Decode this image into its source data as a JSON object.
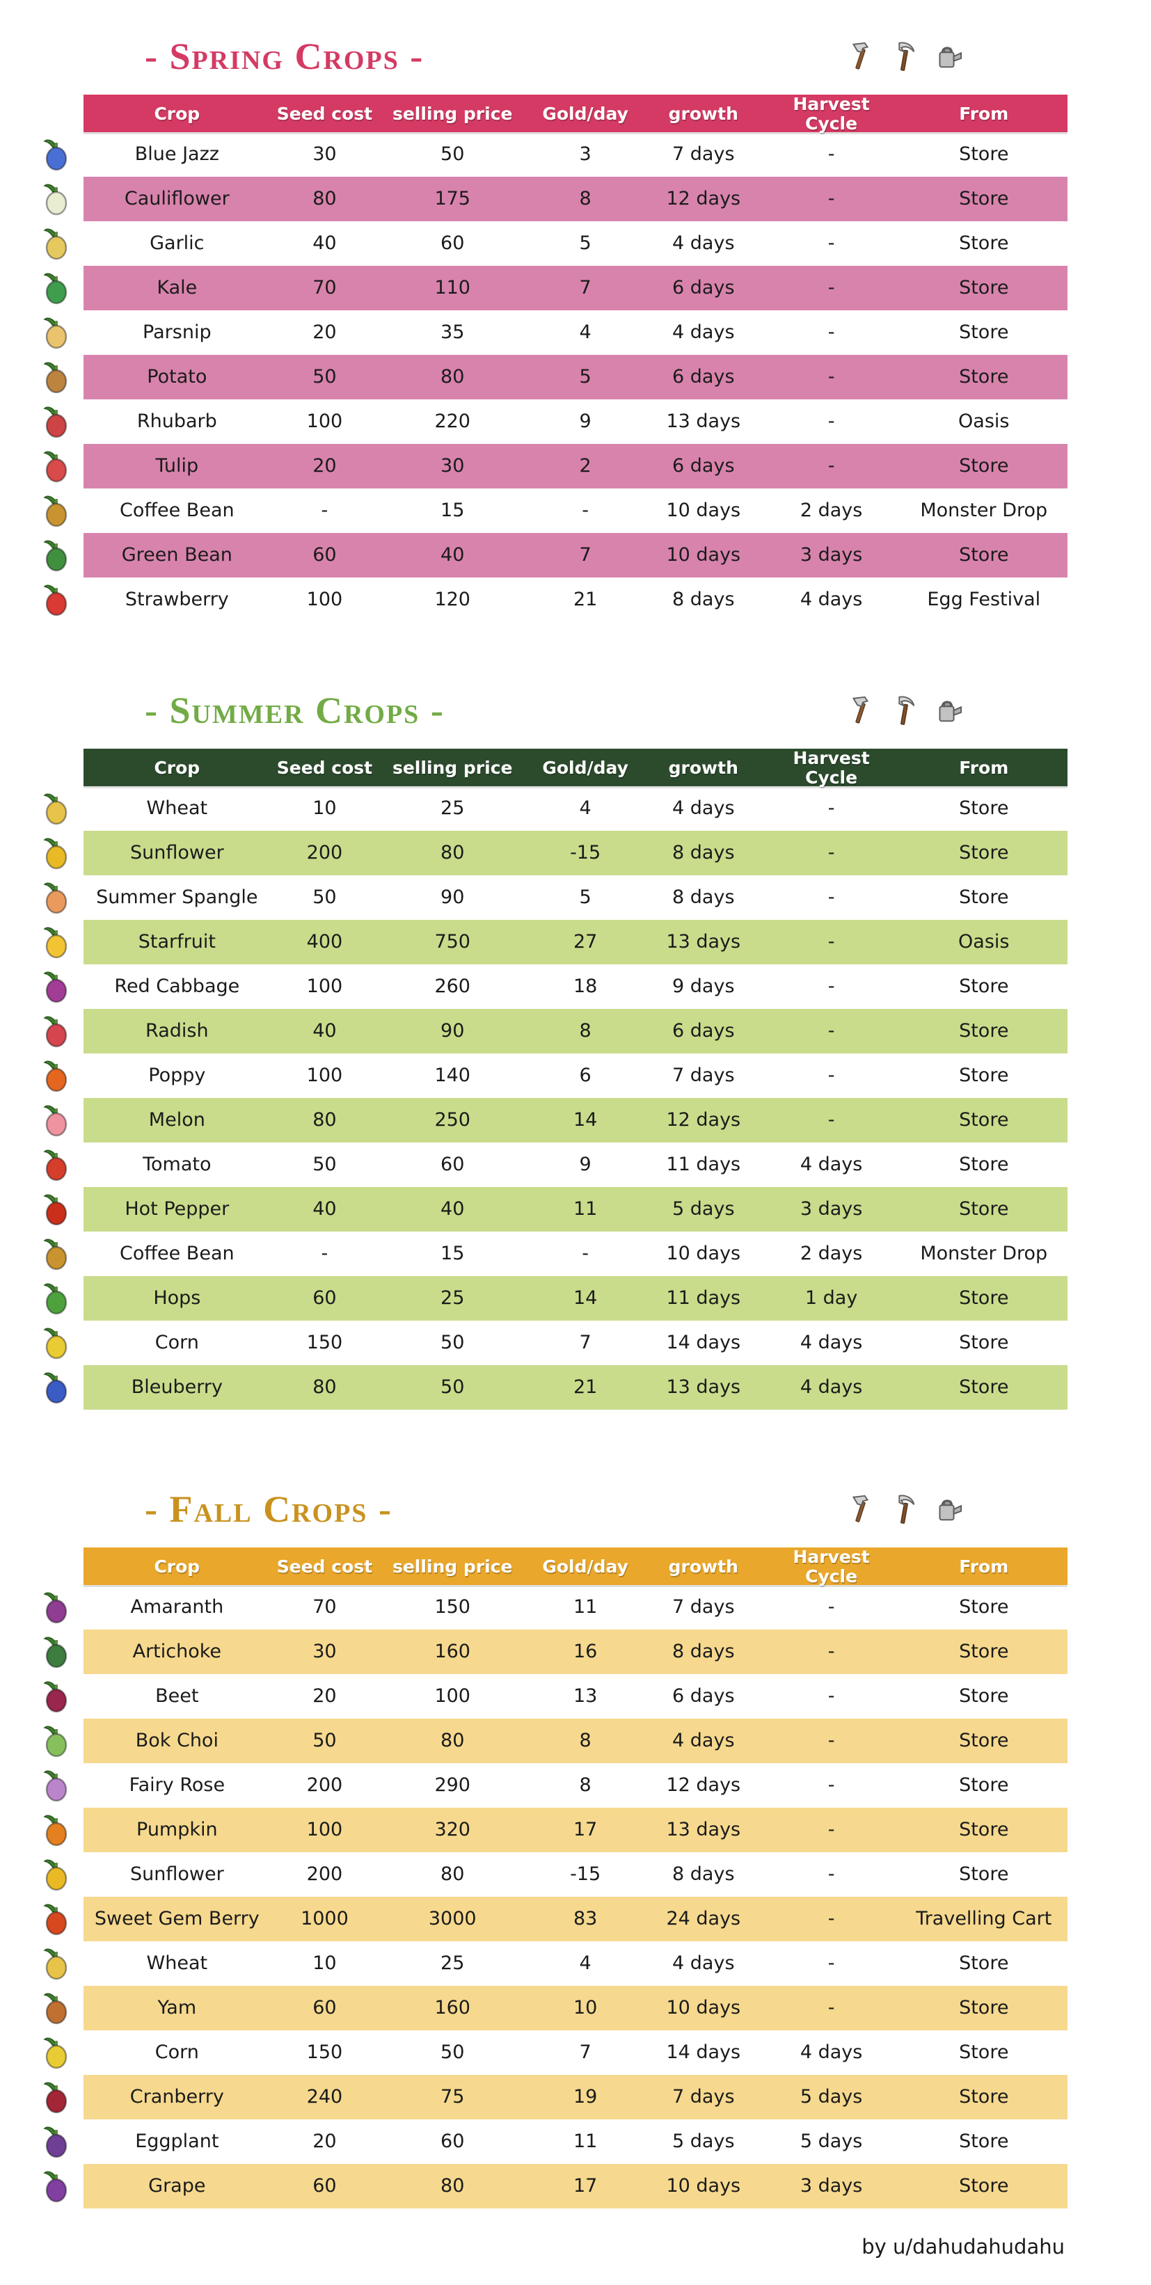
{
  "columns": [
    "Crop",
    "Seed cost",
    "selling price",
    "Gold/day",
    "growth",
    "Harvest Cycle",
    "From"
  ],
  "tool_icons": [
    "hoe-icon",
    "scythe-icon",
    "watering-can-icon"
  ],
  "footer": {
    "credit": "by u/dahudahudahu"
  },
  "sections": [
    {
      "title": "- Spring Crops -",
      "colors": {
        "title": "#d43a63",
        "header_bg": "#d43a63",
        "alt_row_bg": "#d883ac",
        "header_text": "#ffffff"
      },
      "rows": [
        {
          "icon": "blue-jazz-icon",
          "icon_color": "#4a6fd4",
          "crop": "Blue Jazz",
          "seed_cost": "30",
          "selling_price": "50",
          "gold_per_day": "3",
          "growth": "7 days",
          "harvest_cycle": "-",
          "from": "Store"
        },
        {
          "icon": "cauliflower-icon",
          "icon_color": "#e9edd2",
          "crop": "Cauliflower",
          "seed_cost": "80",
          "selling_price": "175",
          "gold_per_day": "8",
          "growth": "12 days",
          "harvest_cycle": "-",
          "from": "Store"
        },
        {
          "icon": "garlic-icon",
          "icon_color": "#e5c95f",
          "crop": "Garlic",
          "seed_cost": "40",
          "selling_price": "60",
          "gold_per_day": "5",
          "growth": "4 days",
          "harvest_cycle": "-",
          "from": "Store"
        },
        {
          "icon": "kale-icon",
          "icon_color": "#3f9e4d",
          "crop": "Kale",
          "seed_cost": "70",
          "selling_price": "110",
          "gold_per_day": "7",
          "growth": "6 days",
          "harvest_cycle": "-",
          "from": "Store"
        },
        {
          "icon": "parsnip-icon",
          "icon_color": "#eac36e",
          "crop": "Parsnip",
          "seed_cost": "20",
          "selling_price": "35",
          "gold_per_day": "4",
          "growth": "4 days",
          "harvest_cycle": "-",
          "from": "Store"
        },
        {
          "icon": "potato-icon",
          "icon_color": "#bd8440",
          "crop": "Potato",
          "seed_cost": "50",
          "selling_price": "80",
          "gold_per_day": "5",
          "growth": "6 days",
          "harvest_cycle": "-",
          "from": "Store"
        },
        {
          "icon": "rhubarb-icon",
          "icon_color": "#cc4444",
          "crop": "Rhubarb",
          "seed_cost": "100",
          "selling_price": "220",
          "gold_per_day": "9",
          "growth": "13 days",
          "harvest_cycle": "-",
          "from": "Oasis"
        },
        {
          "icon": "tulip-icon",
          "icon_color": "#d94a4a",
          "crop": "Tulip",
          "seed_cost": "20",
          "selling_price": "30",
          "gold_per_day": "2",
          "growth": "6 days",
          "harvest_cycle": "-",
          "from": "Store"
        },
        {
          "icon": "coffee-bean-icon",
          "icon_color": "#c9942f",
          "crop": "Coffee Bean",
          "seed_cost": "-",
          "selling_price": "15",
          "gold_per_day": "-",
          "growth": "10 days",
          "harvest_cycle": "2 days",
          "from": "Monster Drop"
        },
        {
          "icon": "green-bean-icon",
          "icon_color": "#3f8f3f",
          "crop": "Green Bean",
          "seed_cost": "60",
          "selling_price": "40",
          "gold_per_day": "7",
          "growth": "10 days",
          "harvest_cycle": "3 days",
          "from": "Store"
        },
        {
          "icon": "strawberry-icon",
          "icon_color": "#d93a33",
          "crop": "Strawberry",
          "seed_cost": "100",
          "selling_price": "120",
          "gold_per_day": "21",
          "growth": "8 days",
          "harvest_cycle": "4 days",
          "from": "Egg Festival"
        }
      ]
    },
    {
      "title": "- Summer Crops -",
      "colors": {
        "title": "#72ab45",
        "header_bg": "#2c4b2d",
        "alt_row_bg": "#c9dc8b",
        "header_text": "#ffffff"
      },
      "rows": [
        {
          "icon": "wheat-icon",
          "icon_color": "#e8c34a",
          "crop": "Wheat",
          "seed_cost": "10",
          "selling_price": "25",
          "gold_per_day": "4",
          "growth": "4 days",
          "harvest_cycle": "-",
          "from": "Store"
        },
        {
          "icon": "sunflower-icon",
          "icon_color": "#e9ba25",
          "crop": "Sunflower",
          "seed_cost": "200",
          "selling_price": "80",
          "gold_per_day": "-15",
          "growth": "8 days",
          "harvest_cycle": "-",
          "from": "Store"
        },
        {
          "icon": "summer-spangle-icon",
          "icon_color": "#e99a5c",
          "crop": "Summer Spangle",
          "seed_cost": "50",
          "selling_price": "90",
          "gold_per_day": "5",
          "growth": "8 days",
          "harvest_cycle": "-",
          "from": "Store"
        },
        {
          "icon": "starfruit-icon",
          "icon_color": "#f2c434",
          "crop": "Starfruit",
          "seed_cost": "400",
          "selling_price": "750",
          "gold_per_day": "27",
          "growth": "13 days",
          "harvest_cycle": "-",
          "from": "Oasis"
        },
        {
          "icon": "red-cabbage-icon",
          "icon_color": "#a23d95",
          "crop": "Red Cabbage",
          "seed_cost": "100",
          "selling_price": "260",
          "gold_per_day": "18",
          "growth": "9 days",
          "harvest_cycle": "-",
          "from": "Store"
        },
        {
          "icon": "radish-icon",
          "icon_color": "#d4454e",
          "crop": "Radish",
          "seed_cost": "40",
          "selling_price": "90",
          "gold_per_day": "8",
          "growth": "6 days",
          "harvest_cycle": "-",
          "from": "Store"
        },
        {
          "icon": "poppy-icon",
          "icon_color": "#e4661f",
          "crop": "Poppy",
          "seed_cost": "100",
          "selling_price": "140",
          "gold_per_day": "6",
          "growth": "7 days",
          "harvest_cycle": "-",
          "from": "Store"
        },
        {
          "icon": "melon-icon",
          "icon_color": "#ef93a0",
          "crop": "Melon",
          "seed_cost": "80",
          "selling_price": "250",
          "gold_per_day": "14",
          "growth": "12 days",
          "harvest_cycle": "-",
          "from": "Store"
        },
        {
          "icon": "tomato-icon",
          "icon_color": "#d43e2b",
          "crop": "Tomato",
          "seed_cost": "50",
          "selling_price": "60",
          "gold_per_day": "9",
          "growth": "11 days",
          "harvest_cycle": "4 days",
          "from": "Store"
        },
        {
          "icon": "hot-pepper-icon",
          "icon_color": "#c92f1b",
          "crop": "Hot Pepper",
          "seed_cost": "40",
          "selling_price": "40",
          "gold_per_day": "11",
          "growth": "5 days",
          "harvest_cycle": "3 days",
          "from": "Store"
        },
        {
          "icon": "coffee-bean-icon",
          "icon_color": "#c9942f",
          "crop": "Coffee Bean",
          "seed_cost": "-",
          "selling_price": "15",
          "gold_per_day": "-",
          "growth": "10 days",
          "harvest_cycle": "2 days",
          "from": "Monster Drop"
        },
        {
          "icon": "hops-icon",
          "icon_color": "#4da23e",
          "crop": "Hops",
          "seed_cost": "60",
          "selling_price": "25",
          "gold_per_day": "14",
          "growth": "11 days",
          "harvest_cycle": "1 day",
          "from": "Store"
        },
        {
          "icon": "corn-icon",
          "icon_color": "#e9cb33",
          "crop": "Corn",
          "seed_cost": "150",
          "selling_price": "50",
          "gold_per_day": "7",
          "growth": "14 days",
          "harvest_cycle": "4 days",
          "from": "Store"
        },
        {
          "icon": "bleuberry-icon",
          "icon_color": "#3b5cc4",
          "crop": "Bleuberry",
          "seed_cost": "80",
          "selling_price": "50",
          "gold_per_day": "21",
          "growth": "13 days",
          "harvest_cycle": "4 days",
          "from": "Store"
        }
      ]
    },
    {
      "title": "- Fall Crops -",
      "colors": {
        "title": "#c9921f",
        "header_bg": "#e9a72b",
        "alt_row_bg": "#f6d98e",
        "header_text": "#ffffff"
      },
      "rows": [
        {
          "icon": "amaranth-icon",
          "icon_color": "#8e3d92",
          "crop": "Amaranth",
          "seed_cost": "70",
          "selling_price": "150",
          "gold_per_day": "11",
          "growth": "7 days",
          "harvest_cycle": "-",
          "from": "Store"
        },
        {
          "icon": "artichoke-icon",
          "icon_color": "#3d7d3f",
          "crop": "Artichoke",
          "seed_cost": "30",
          "selling_price": "160",
          "gold_per_day": "16",
          "growth": "8 days",
          "harvest_cycle": "-",
          "from": "Store"
        },
        {
          "icon": "beet-icon",
          "icon_color": "#99264d",
          "crop": "Beet",
          "seed_cost": "20",
          "selling_price": "100",
          "gold_per_day": "13",
          "growth": "6 days",
          "harvest_cycle": "-",
          "from": "Store"
        },
        {
          "icon": "bok-choi-icon",
          "icon_color": "#86c05c",
          "crop": "Bok Choi",
          "seed_cost": "50",
          "selling_price": "80",
          "gold_per_day": "8",
          "growth": "4 days",
          "harvest_cycle": "-",
          "from": "Store"
        },
        {
          "icon": "fairy-rose-icon",
          "icon_color": "#bb85cc",
          "crop": "Fairy Rose",
          "seed_cost": "200",
          "selling_price": "290",
          "gold_per_day": "8",
          "growth": "12 days",
          "harvest_cycle": "-",
          "from": "Store"
        },
        {
          "icon": "pumpkin-icon",
          "icon_color": "#e4801f",
          "crop": "Pumpkin",
          "seed_cost": "100",
          "selling_price": "320",
          "gold_per_day": "17",
          "growth": "13 days",
          "harvest_cycle": "-",
          "from": "Store"
        },
        {
          "icon": "sunflower-icon",
          "icon_color": "#e9ba25",
          "crop": "Sunflower",
          "seed_cost": "200",
          "selling_price": "80",
          "gold_per_day": "-15",
          "growth": "8 days",
          "harvest_cycle": "-",
          "from": "Store"
        },
        {
          "icon": "sweet-gem-berry-icon",
          "icon_color": "#d8481f",
          "crop": "Sweet Gem Berry",
          "seed_cost": "1000",
          "selling_price": "3000",
          "gold_per_day": "83",
          "growth": "24 days",
          "harvest_cycle": "-",
          "from": "Travelling Cart"
        },
        {
          "icon": "wheat-icon",
          "icon_color": "#e8c34a",
          "crop": "Wheat",
          "seed_cost": "10",
          "selling_price": "25",
          "gold_per_day": "4",
          "growth": "4 days",
          "harvest_cycle": "-",
          "from": "Store"
        },
        {
          "icon": "yam-icon",
          "icon_color": "#c07030",
          "crop": "Yam",
          "seed_cost": "60",
          "selling_price": "160",
          "gold_per_day": "10",
          "growth": "10 days",
          "harvest_cycle": "-",
          "from": "Store"
        },
        {
          "icon": "corn-icon",
          "icon_color": "#e9cb33",
          "crop": "Corn",
          "seed_cost": "150",
          "selling_price": "50",
          "gold_per_day": "7",
          "growth": "14 days",
          "harvest_cycle": "4 days",
          "from": "Store"
        },
        {
          "icon": "cranberry-icon",
          "icon_color": "#a22636",
          "crop": "Cranberry",
          "seed_cost": "240",
          "selling_price": "75",
          "gold_per_day": "19",
          "growth": "7 days",
          "harvest_cycle": "5 days",
          "from": "Store"
        },
        {
          "icon": "eggplant-icon",
          "icon_color": "#6e3f95",
          "crop": "Eggplant",
          "seed_cost": "20",
          "selling_price": "60",
          "gold_per_day": "11",
          "growth": "5 days",
          "harvest_cycle": "5 days",
          "from": "Store"
        },
        {
          "icon": "grape-icon",
          "icon_color": "#813fa0",
          "crop": "Grape",
          "seed_cost": "60",
          "selling_price": "80",
          "gold_per_day": "17",
          "growth": "10 days",
          "harvest_cycle": "3 days",
          "from": "Store"
        }
      ]
    }
  ]
}
